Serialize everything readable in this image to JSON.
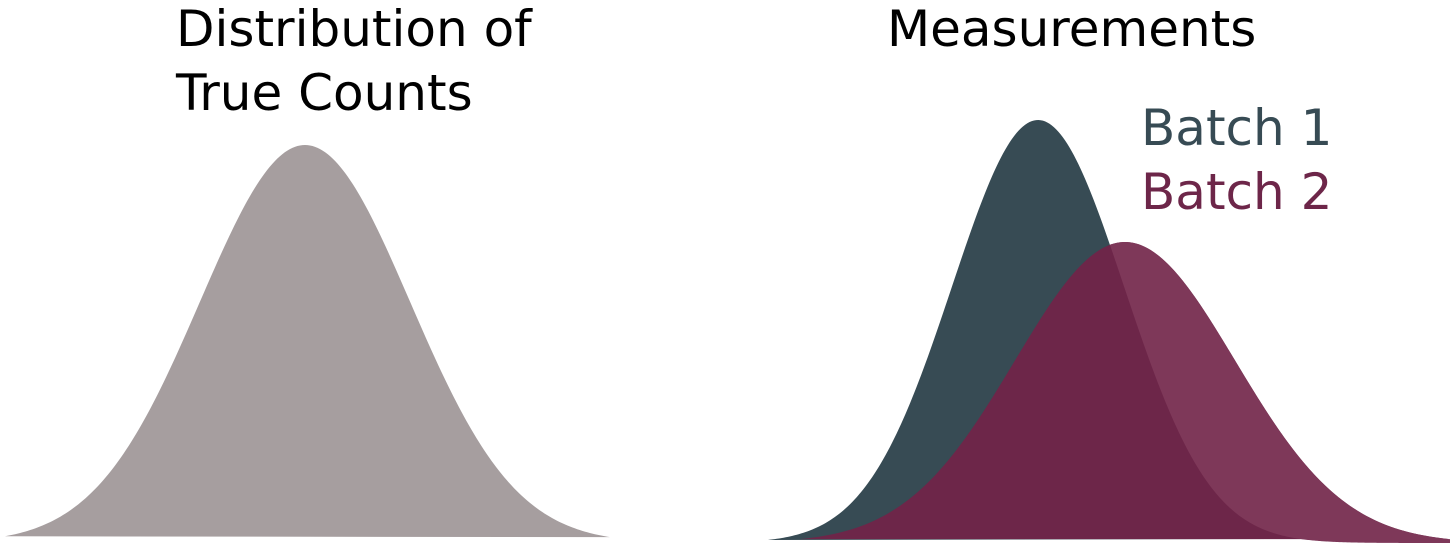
{
  "left_panel": {
    "title": "Distribution of True Counts",
    "curve_color": "#a69e9f"
  },
  "right_panel": {
    "title": "Measurements",
    "legend": [
      {
        "label": "Batch 1",
        "color": "#374b54"
      },
      {
        "label": "Batch 2",
        "color": "#6d2649"
      }
    ],
    "overlap_batch1_right_tail_color": "#7e3859"
  }
}
